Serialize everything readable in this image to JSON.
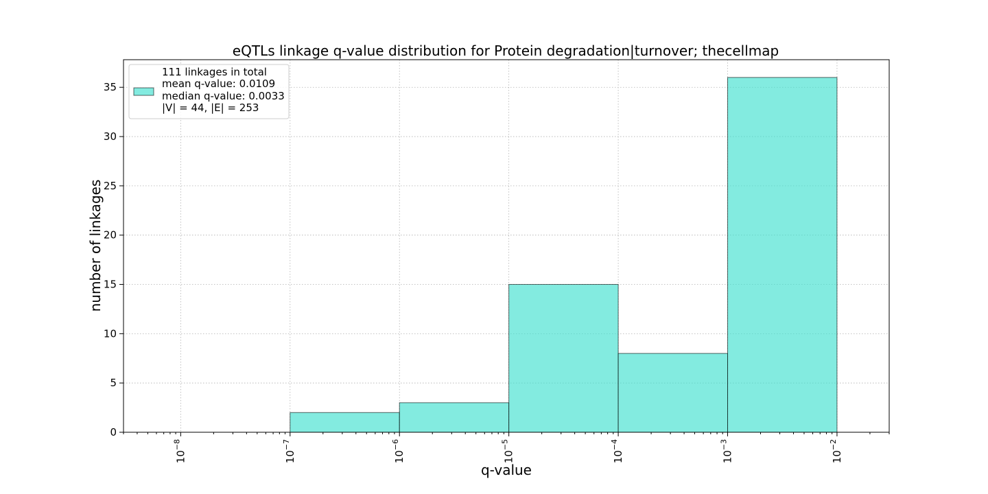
{
  "chart_data": {
    "type": "bar",
    "title": "eQTLs linkage q-value distribution for Protein degradation|turnover; thecellmap",
    "xlabel": "q-value",
    "ylabel": "number of linkages",
    "x_scale": "log",
    "xlim": [
      3e-09,
      0.03
    ],
    "ylim": [
      0,
      37.8
    ],
    "grid": true,
    "x_ticks": [
      {
        "value": 1e-08,
        "base": "10",
        "exp": "−8"
      },
      {
        "value": 1e-07,
        "base": "10",
        "exp": "−7"
      },
      {
        "value": 1e-06,
        "base": "10",
        "exp": "−6"
      },
      {
        "value": 1e-05,
        "base": "10",
        "exp": "−5"
      },
      {
        "value": 0.0001,
        "base": "10",
        "exp": "−4"
      },
      {
        "value": 0.001,
        "base": "10",
        "exp": "−3"
      },
      {
        "value": 0.01,
        "base": "10",
        "exp": "−2"
      }
    ],
    "y_ticks": [
      0,
      5,
      10,
      15,
      20,
      25,
      30,
      35
    ],
    "bins": [
      {
        "from": 1e-07,
        "to": 1e-06,
        "count": 2
      },
      {
        "from": 1e-06,
        "to": 1e-05,
        "count": 3
      },
      {
        "from": 1e-05,
        "to": 0.0001,
        "count": 15
      },
      {
        "from": 0.0001,
        "to": 0.001,
        "count": 8
      },
      {
        "from": 0.001,
        "to": 0.01,
        "count": 36
      }
    ],
    "bar_color": "#40E0D0",
    "legend": {
      "placement": "upper-left",
      "lines": [
        "111 linkages in total",
        "mean q-value: 0.0109",
        "median q-value: 0.0033",
        "|V| = 44, |E| = 253"
      ]
    }
  }
}
